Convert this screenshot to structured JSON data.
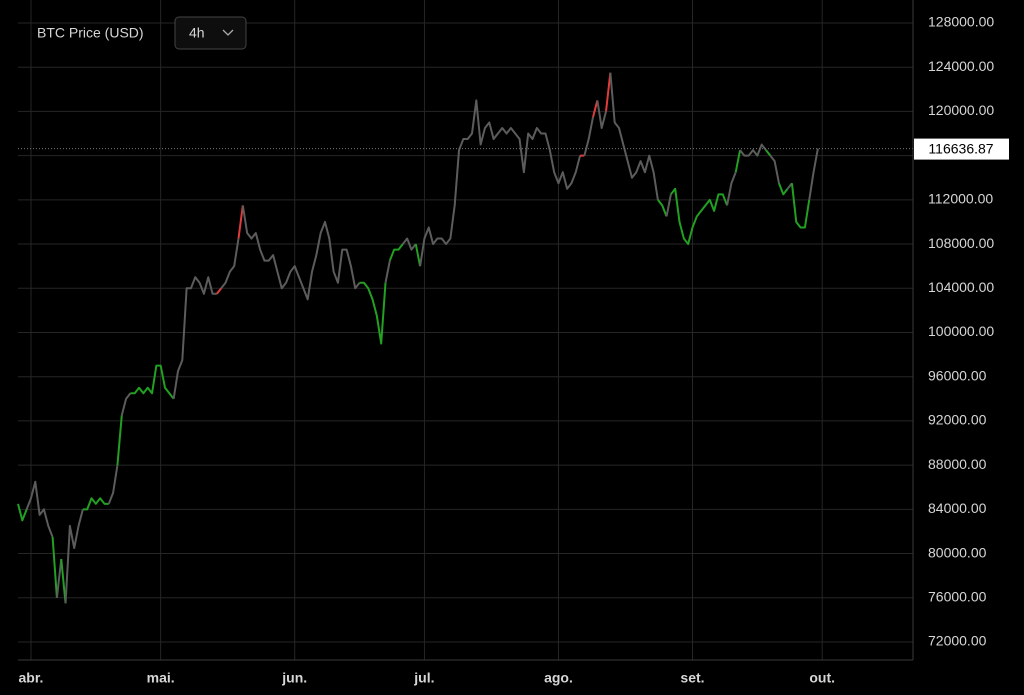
{
  "chart_data": {
    "type": "line",
    "title": "BTC Price (USD)",
    "interval": "4h",
    "x": [
      -3,
      -2,
      -1,
      0,
      1,
      2,
      3,
      4,
      5,
      6,
      7,
      8,
      9,
      10,
      11,
      12,
      13,
      14,
      15,
      16,
      17,
      18,
      19,
      20,
      21,
      22,
      23,
      24,
      25,
      26,
      27,
      28,
      29,
      30,
      31,
      32,
      33,
      34,
      35,
      36,
      37,
      38,
      39,
      40,
      41,
      42,
      43,
      44,
      45,
      46,
      47,
      48,
      49,
      50,
      51,
      52,
      53,
      54,
      55,
      56,
      57,
      58,
      59,
      60,
      61,
      62,
      63,
      64,
      65,
      66,
      67,
      68,
      69,
      70,
      71,
      72,
      73,
      74,
      75,
      76,
      77,
      78,
      79,
      80,
      81,
      82,
      83,
      84,
      85,
      86,
      87,
      88,
      89,
      90,
      91,
      92,
      93,
      94,
      95,
      96,
      97,
      98,
      99,
      100,
      101,
      102,
      103,
      104,
      105,
      106,
      107,
      108,
      109,
      110,
      111,
      112,
      113,
      114,
      115,
      116,
      117,
      118,
      119,
      120,
      121,
      122,
      123,
      124,
      125,
      126,
      127,
      128,
      129,
      130,
      131,
      132,
      133,
      134,
      135,
      136,
      137,
      138,
      139,
      140,
      141,
      142,
      143,
      144,
      145,
      146,
      147,
      148,
      149,
      150,
      151,
      152,
      153,
      154,
      155,
      156,
      157,
      158,
      159,
      160,
      161,
      162,
      163,
      164,
      165,
      166,
      167,
      168,
      169,
      170,
      171,
      172,
      173,
      174,
      175,
      176,
      177,
      178,
      179,
      180,
      181,
      182
    ],
    "values": [
      84500,
      83000,
      84000,
      85000,
      86500,
      83500,
      84000,
      82500,
      81500,
      76000,
      79500,
      75500,
      82500,
      80500,
      82500,
      84000,
      84000,
      85000,
      84500,
      85000,
      84500,
      84500,
      85500,
      88000,
      92500,
      94000,
      94500,
      94500,
      95000,
      94500,
      95000,
      94500,
      97000,
      97000,
      95000,
      94500,
      94000,
      96500,
      97500,
      104000,
      104000,
      105000,
      104500,
      103500,
      105000,
      103500,
      103500,
      104000,
      104500,
      105500,
      106000,
      108500,
      111500,
      109000,
      108500,
      109000,
      107500,
      106500,
      106500,
      107000,
      105500,
      104000,
      104500,
      105500,
      106000,
      105000,
      104000,
      103000,
      105500,
      107000,
      109000,
      110000,
      108500,
      105500,
      104500,
      107500,
      107500,
      106000,
      104000,
      104500,
      104500,
      104000,
      103000,
      101500,
      99000,
      104500,
      106500,
      107500,
      107500,
      108000,
      108500,
      107500,
      108000,
      106000,
      108500,
      109500,
      108000,
      108500,
      108500,
      108000,
      108500,
      111500,
      116500,
      117500,
      117500,
      118000,
      121000,
      117000,
      118500,
      119000,
      117500,
      118000,
      118500,
      118000,
      118500,
      118000,
      117500,
      114500,
      118000,
      117500,
      118500,
      118000,
      118000,
      116500,
      114500,
      113500,
      114500,
      113000,
      113500,
      114500,
      116000,
      116000,
      117500,
      119500,
      121000,
      118500,
      120000,
      123500,
      119000,
      118500,
      117000,
      115500,
      114000,
      114500,
      115500,
      114500,
      116000,
      114500,
      112000,
      111500,
      110500,
      112500,
      113000,
      110000,
      108500,
      108000,
      109500,
      110500,
      111000,
      111500,
      112000,
      111000,
      112500,
      112500,
      111500,
      113500,
      114500,
      116500,
      116000,
      116000,
      116500,
      116000,
      117000,
      116500,
      116000,
      115500,
      113500,
      112500,
      113000,
      113500,
      110000,
      109500,
      109500,
      112000,
      114500,
      116636.87
    ],
    "point_colors": [
      "#22a022",
      "#22a022",
      "#22a022",
      "#5c5c5c",
      "#5c5c5c",
      "#5c5c5c",
      "#5c5c5c",
      "#5c5c5c",
      "#5c5c5c",
      "#22a022",
      "#5c5c5c",
      "#22a022",
      "#5c5c5c",
      "#5c5c5c",
      "#5c5c5c",
      "#5c5c5c",
      "#22a022",
      "#22a022",
      "#22a022",
      "#22a022",
      "#22a022",
      "#22a022",
      "#5c5c5c",
      "#5c5c5c",
      "#22a022",
      "#5c5c5c",
      "#5c5c5c",
      "#22a022",
      "#22a022",
      "#22a022",
      "#22a022",
      "#22a022",
      "#22a022",
      "#22a022",
      "#22a022",
      "#22a022",
      "#22a022",
      "#5c5c5c",
      "#5c5c5c",
      "#5c5c5c",
      "#5c5c5c",
      "#5c5c5c",
      "#5c5c5c",
      "#5c5c5c",
      "#5c5c5c",
      "#5c5c5c",
      "#5c5c5c",
      "#e03c3c",
      "#5c5c5c",
      "#5c5c5c",
      "#5c5c5c",
      "#5c5c5c",
      "#e03c3c",
      "#5c5c5c",
      "#5c5c5c",
      "#5c5c5c",
      "#5c5c5c",
      "#5c5c5c",
      "#5c5c5c",
      "#5c5c5c",
      "#5c5c5c",
      "#5c5c5c",
      "#5c5c5c",
      "#5c5c5c",
      "#5c5c5c",
      "#5c5c5c",
      "#5c5c5c",
      "#5c5c5c",
      "#5c5c5c",
      "#5c5c5c",
      "#5c5c5c",
      "#5c5c5c",
      "#5c5c5c",
      "#5c5c5c",
      "#5c5c5c",
      "#5c5c5c",
      "#5c5c5c",
      "#5c5c5c",
      "#5c5c5c",
      "#5c5c5c",
      "#22a022",
      "#22a022",
      "#22a022",
      "#22a022",
      "#22a022",
      "#22a022",
      "#5c5c5c",
      "#22a022",
      "#22a022",
      "#22a022",
      "#5c5c5c",
      "#5c5c5c",
      "#5c5c5c",
      "#22a022",
      "#5c5c5c",
      "#5c5c5c",
      "#5c5c5c",
      "#5c5c5c",
      "#5c5c5c",
      "#5c5c5c",
      "#5c5c5c",
      "#5c5c5c",
      "#5c5c5c",
      "#5c5c5c",
      "#5c5c5c",
      "#5c5c5c",
      "#5c5c5c",
      "#5c5c5c",
      "#5c5c5c",
      "#5c5c5c",
      "#5c5c5c",
      "#5c5c5c",
      "#5c5c5c",
      "#5c5c5c",
      "#5c5c5c",
      "#5c5c5c",
      "#5c5c5c",
      "#5c5c5c",
      "#5c5c5c",
      "#5c5c5c",
      "#5c5c5c",
      "#5c5c5c",
      "#5c5c5c",
      "#5c5c5c",
      "#5c5c5c",
      "#5c5c5c",
      "#5c5c5c",
      "#5c5c5c",
      "#5c5c5c",
      "#5c5c5c",
      "#5c5c5c",
      "#e03c3c",
      "#5c5c5c",
      "#5c5c5c",
      "#e03c3c",
      "#5c5c5c",
      "#5c5c5c",
      "#e03c3c",
      "#5c5c5c",
      "#5c5c5c",
      "#5c5c5c",
      "#5c5c5c",
      "#5c5c5c",
      "#5c5c5c",
      "#5c5c5c",
      "#5c5c5c",
      "#5c5c5c",
      "#5c5c5c",
      "#5c5c5c",
      "#22a022",
      "#22a022",
      "#5c5c5c",
      "#22a022",
      "#22a022",
      "#22a022",
      "#22a022",
      "#22a022",
      "#22a022",
      "#22a022",
      "#22a022",
      "#22a022",
      "#22a022",
      "#22a022",
      "#22a022",
      "#22a022",
      "#5c5c5c",
      "#5c5c5c",
      "#22a022",
      "#5c5c5c",
      "#5c5c5c",
      "#5c5c5c",
      "#5c5c5c",
      "#5c5c5c",
      "#5c5c5c",
      "#22a022",
      "#5c5c5c",
      "#5c5c5c",
      "#22a022",
      "#22a022",
      "#5c5c5c",
      "#22a022",
      "#22a022",
      "#22a022",
      "#22a022",
      "#5c5c5c",
      "#5c5c5c"
    ],
    "xlim": [
      -3,
      204
    ],
    "xticks": [
      {
        "value": 0,
        "label": "abr."
      },
      {
        "value": 30,
        "label": "mai."
      },
      {
        "value": 61,
        "label": "jun."
      },
      {
        "value": 91,
        "label": "jul."
      },
      {
        "value": 122,
        "label": "ago."
      },
      {
        "value": 153,
        "label": "set."
      },
      {
        "value": 183,
        "label": "out."
      }
    ],
    "ylim": [
      70370,
      130080
    ],
    "yticks": [
      {
        "value": 72000,
        "label": "72000.00"
      },
      {
        "value": 76000,
        "label": "76000.00"
      },
      {
        "value": 80000,
        "label": "80000.00"
      },
      {
        "value": 84000,
        "label": "84000.00"
      },
      {
        "value": 88000,
        "label": "88000.00"
      },
      {
        "value": 92000,
        "label": "92000.00"
      },
      {
        "value": 96000,
        "label": "96000.00"
      },
      {
        "value": 100000,
        "label": "100000.00"
      },
      {
        "value": 104000,
        "label": "104000.00"
      },
      {
        "value": 108000,
        "label": "108000.00"
      },
      {
        "value": 112000,
        "label": "112000.00"
      },
      {
        "value": 116000,
        "label": "116000.00"
      },
      {
        "value": 120000,
        "label": "120000.00"
      },
      {
        "value": 124000,
        "label": "124000.00"
      },
      {
        "value": 128000,
        "label": "128000.00"
      }
    ],
    "grid": true
  }
}
